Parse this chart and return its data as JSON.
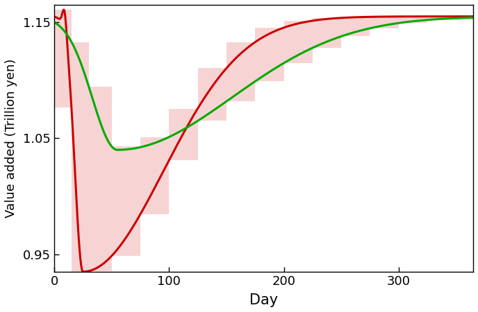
{
  "title": "",
  "xlabel": "Day",
  "ylabel": "Value added (Trillion yen)",
  "xlim": [
    0,
    365
  ],
  "ylim": [
    0.935,
    1.165
  ],
  "yticks": [
    0.95,
    1.05,
    1.15
  ],
  "xticks": [
    0,
    100,
    200,
    300
  ],
  "red_color": "#CC0000",
  "green_color": "#00AA00",
  "pink_color": "#F4C2C2",
  "pink_alpha": 0.7,
  "line_width": 2.2,
  "figsize": [
    6.88,
    4.5
  ],
  "dpi": 100,
  "rect_intervals": [
    0,
    15,
    30,
    50,
    75,
    100,
    125,
    150,
    175,
    200,
    225,
    250,
    275,
    300,
    325,
    365
  ]
}
